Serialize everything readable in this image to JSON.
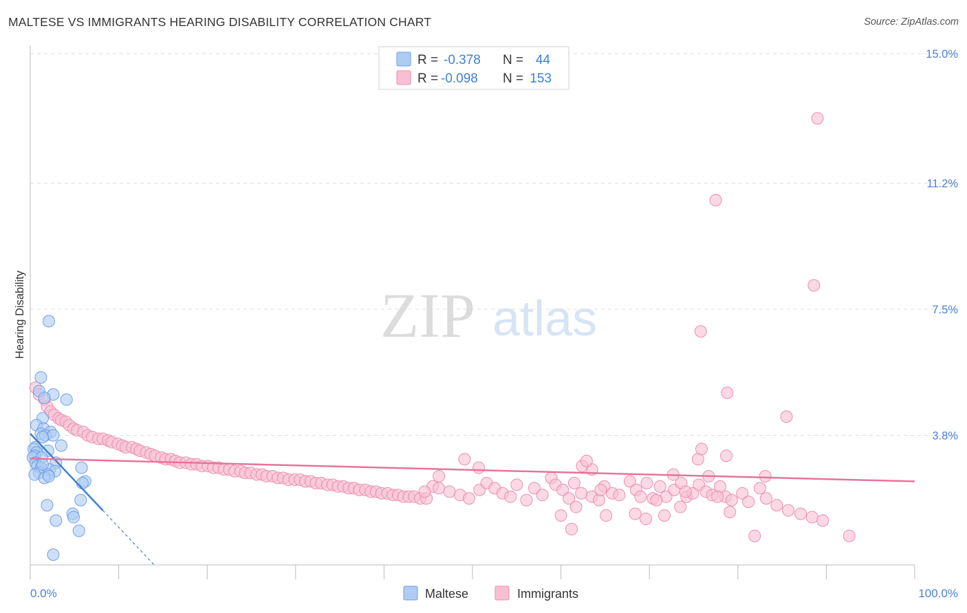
{
  "title": "MALTESE VS IMMIGRANTS HEARING DISABILITY CORRELATION CHART",
  "source": "Source: ZipAtlas.com",
  "watermark": {
    "part1": "ZIP",
    "part2": "atlas"
  },
  "colors": {
    "maltese_fill": "#aecbf4",
    "maltese_stroke": "#6d9ee6",
    "maltese_line": "#3e7fd6",
    "immigrants_fill": "#f8bfd2",
    "immigrants_stroke": "#ec8db0",
    "immigrants_line": "#e8729b",
    "tick_text": "#4a7fd8",
    "grid": "#dddddd"
  },
  "chart_data": {
    "type": "scatter",
    "title": "MALTESE VS IMMIGRANTS HEARING DISABILITY CORRELATION CHART",
    "xlabel": "",
    "ylabel": "Hearing Disability",
    "xlim": [
      0,
      100
    ],
    "ylim": [
      0,
      15.0
    ],
    "y_ticks": [
      3.8,
      7.5,
      11.2,
      15.0
    ],
    "y_tick_labels": [
      "3.8%",
      "7.5%",
      "11.2%",
      "15.0%"
    ],
    "x_tick_labels": [
      "0.0%",
      "100.0%"
    ],
    "legend": [
      {
        "series": "Maltese",
        "r_label": "R =",
        "r_value": "-0.378",
        "n_label": "N =",
        "n_value": "44"
      },
      {
        "series": "Immigrants",
        "r_label": "R =",
        "r_value": "-0.098",
        "n_label": "N =",
        "n_value": "153"
      }
    ],
    "series": [
      {
        "name": "Maltese",
        "trend": {
          "x0": 0,
          "y0": 3.85,
          "x1": 8.2,
          "y1": 1.6,
          "dash_to_x": 14.0,
          "dash_to_y": 0.0
        },
        "points": [
          [
            2.1,
            7.15
          ],
          [
            1.2,
            5.5
          ],
          [
            1.0,
            5.1
          ],
          [
            2.6,
            5.0
          ],
          [
            1.6,
            4.9
          ],
          [
            4.1,
            4.85
          ],
          [
            1.4,
            4.3
          ],
          [
            0.7,
            4.1
          ],
          [
            1.5,
            4.0
          ],
          [
            2.3,
            3.9
          ],
          [
            1.2,
            3.85
          ],
          [
            1.7,
            3.8
          ],
          [
            2.6,
            3.8
          ],
          [
            1.4,
            3.75
          ],
          [
            3.5,
            3.5
          ],
          [
            0.6,
            3.45
          ],
          [
            0.4,
            3.4
          ],
          [
            2.0,
            3.35
          ],
          [
            0.7,
            3.3
          ],
          [
            0.5,
            3.2
          ],
          [
            0.3,
            3.15
          ],
          [
            1.3,
            3.15
          ],
          [
            0.6,
            3.0
          ],
          [
            2.9,
            3.0
          ],
          [
            0.8,
            2.9
          ],
          [
            1.2,
            2.85
          ],
          [
            5.8,
            2.85
          ],
          [
            2.2,
            2.8
          ],
          [
            2.8,
            2.75
          ],
          [
            1.0,
            2.7
          ],
          [
            0.5,
            2.65
          ],
          [
            2.0,
            2.65
          ],
          [
            1.6,
            2.55
          ],
          [
            2.1,
            2.6
          ],
          [
            6.2,
            2.45
          ],
          [
            5.9,
            2.4
          ],
          [
            5.7,
            1.9
          ],
          [
            1.9,
            1.75
          ],
          [
            4.8,
            1.5
          ],
          [
            4.9,
            1.4
          ],
          [
            2.9,
            1.3
          ],
          [
            5.5,
            1.0
          ],
          [
            2.6,
            0.3
          ],
          [
            1.4,
            2.95
          ]
        ]
      },
      {
        "name": "Immigrants",
        "trend": {
          "x0": 0,
          "y0": 3.12,
          "x1": 100,
          "y1": 2.45
        },
        "points": [
          [
            0.6,
            5.2
          ],
          [
            1.0,
            5.0
          ],
          [
            1.6,
            4.85
          ],
          [
            1.9,
            4.65
          ],
          [
            2.3,
            4.5
          ],
          [
            2.7,
            4.4
          ],
          [
            3.2,
            4.3
          ],
          [
            3.5,
            4.25
          ],
          [
            4.0,
            4.2
          ],
          [
            4.4,
            4.1
          ],
          [
            4.9,
            4.0
          ],
          [
            5.3,
            3.95
          ],
          [
            6.0,
            3.9
          ],
          [
            6.5,
            3.8
          ],
          [
            7.0,
            3.75
          ],
          [
            7.7,
            3.7
          ],
          [
            8.2,
            3.7
          ],
          [
            8.8,
            3.65
          ],
          [
            9.2,
            3.6
          ],
          [
            9.9,
            3.55
          ],
          [
            10.4,
            3.5
          ],
          [
            10.8,
            3.45
          ],
          [
            11.5,
            3.45
          ],
          [
            12.0,
            3.4
          ],
          [
            12.4,
            3.35
          ],
          [
            13.1,
            3.3
          ],
          [
            13.6,
            3.25
          ],
          [
            14.1,
            3.2
          ],
          [
            14.8,
            3.15
          ],
          [
            15.3,
            3.1
          ],
          [
            15.9,
            3.1
          ],
          [
            16.4,
            3.05
          ],
          [
            16.9,
            3.0
          ],
          [
            17.6,
            3.0
          ],
          [
            18.2,
            2.95
          ],
          [
            18.8,
            2.95
          ],
          [
            19.4,
            2.9
          ],
          [
            20.1,
            2.9
          ],
          [
            20.7,
            2.85
          ],
          [
            21.3,
            2.85
          ],
          [
            21.9,
            2.8
          ],
          [
            22.5,
            2.8
          ],
          [
            23.1,
            2.75
          ],
          [
            23.8,
            2.75
          ],
          [
            24.3,
            2.7
          ],
          [
            24.9,
            2.7
          ],
          [
            25.6,
            2.65
          ],
          [
            26.2,
            2.65
          ],
          [
            26.7,
            2.6
          ],
          [
            27.4,
            2.6
          ],
          [
            28.0,
            2.55
          ],
          [
            28.6,
            2.55
          ],
          [
            29.2,
            2.5
          ],
          [
            29.9,
            2.5
          ],
          [
            30.5,
            2.5
          ],
          [
            31.1,
            2.45
          ],
          [
            31.7,
            2.45
          ],
          [
            32.3,
            2.4
          ],
          [
            32.9,
            2.4
          ],
          [
            33.6,
            2.35
          ],
          [
            34.2,
            2.35
          ],
          [
            34.8,
            2.3
          ],
          [
            35.4,
            2.3
          ],
          [
            36.0,
            2.25
          ],
          [
            36.6,
            2.25
          ],
          [
            37.2,
            2.2
          ],
          [
            37.9,
            2.2
          ],
          [
            38.5,
            2.15
          ],
          [
            39.1,
            2.15
          ],
          [
            39.7,
            2.1
          ],
          [
            40.4,
            2.1
          ],
          [
            41.0,
            2.05
          ],
          [
            41.6,
            2.05
          ],
          [
            42.2,
            2.0
          ],
          [
            42.8,
            2.0
          ],
          [
            43.4,
            2.0
          ],
          [
            44.1,
            1.95
          ],
          [
            44.8,
            1.95
          ],
          [
            45.5,
            2.3
          ],
          [
            46.2,
            2.25
          ],
          [
            47.4,
            2.15
          ],
          [
            48.6,
            2.05
          ],
          [
            49.6,
            1.95
          ],
          [
            50.8,
            2.2
          ],
          [
            51.6,
            2.4
          ],
          [
            52.5,
            2.25
          ],
          [
            53.4,
            2.1
          ],
          [
            54.3,
            2.0
          ],
          [
            55.0,
            2.35
          ],
          [
            56.1,
            1.9
          ],
          [
            57.0,
            2.25
          ],
          [
            57.9,
            2.05
          ],
          [
            58.9,
            2.55
          ],
          [
            59.4,
            2.35
          ],
          [
            60.2,
            2.2
          ],
          [
            60.9,
            1.95
          ],
          [
            61.5,
            2.4
          ],
          [
            62.3,
            2.1
          ],
          [
            63.5,
            2.0
          ],
          [
            64.3,
            1.9
          ],
          [
            64.9,
            2.3
          ],
          [
            65.8,
            2.1
          ],
          [
            66.6,
            2.05
          ],
          [
            67.8,
            2.45
          ],
          [
            68.5,
            2.2
          ],
          [
            69.0,
            2.0
          ],
          [
            69.7,
            2.4
          ],
          [
            70.4,
            1.95
          ],
          [
            71.2,
            2.3
          ],
          [
            71.9,
            2.0
          ],
          [
            72.8,
            2.2
          ],
          [
            73.6,
            2.4
          ],
          [
            74.2,
            2.0
          ],
          [
            74.9,
            2.1
          ],
          [
            75.6,
            2.35
          ],
          [
            76.4,
            2.15
          ],
          [
            77.1,
            2.05
          ],
          [
            78.0,
            2.3
          ],
          [
            78.6,
            2.0
          ],
          [
            79.3,
            1.9
          ],
          [
            80.5,
            2.1
          ],
          [
            81.2,
            1.85
          ],
          [
            82.5,
            2.25
          ],
          [
            83.2,
            1.95
          ],
          [
            84.4,
            1.75
          ],
          [
            85.7,
            1.6
          ],
          [
            87.1,
            1.5
          ],
          [
            88.4,
            1.4
          ],
          [
            89.6,
            1.3
          ],
          [
            60.0,
            1.45
          ],
          [
            61.7,
            1.7
          ],
          [
            61.2,
            1.05
          ],
          [
            63.5,
            2.8
          ],
          [
            62.4,
            2.9
          ],
          [
            64.5,
            2.2
          ],
          [
            50.7,
            2.85
          ],
          [
            46.2,
            2.6
          ],
          [
            44.6,
            2.15
          ],
          [
            49.1,
            3.1
          ],
          [
            62.9,
            3.05
          ],
          [
            74.1,
            2.15
          ],
          [
            73.5,
            1.7
          ],
          [
            79.1,
            1.55
          ],
          [
            75.5,
            3.1
          ],
          [
            75.9,
            3.4
          ],
          [
            76.7,
            2.6
          ],
          [
            78.7,
            3.2
          ],
          [
            77.7,
            2.0
          ],
          [
            81.9,
            0.85
          ],
          [
            92.6,
            0.85
          ],
          [
            83.1,
            2.6
          ],
          [
            68.4,
            1.5
          ],
          [
            69.6,
            1.35
          ],
          [
            65.1,
            1.45
          ],
          [
            70.8,
            1.9
          ],
          [
            71.7,
            1.45
          ],
          [
            72.7,
            2.65
          ],
          [
            85.5,
            4.35
          ],
          [
            88.6,
            8.2
          ],
          [
            89.0,
            13.1
          ],
          [
            77.5,
            10.7
          ],
          [
            75.8,
            6.85
          ],
          [
            78.8,
            5.05
          ]
        ]
      }
    ]
  },
  "bottom_legend": [
    "Maltese",
    "Immigrants"
  ]
}
